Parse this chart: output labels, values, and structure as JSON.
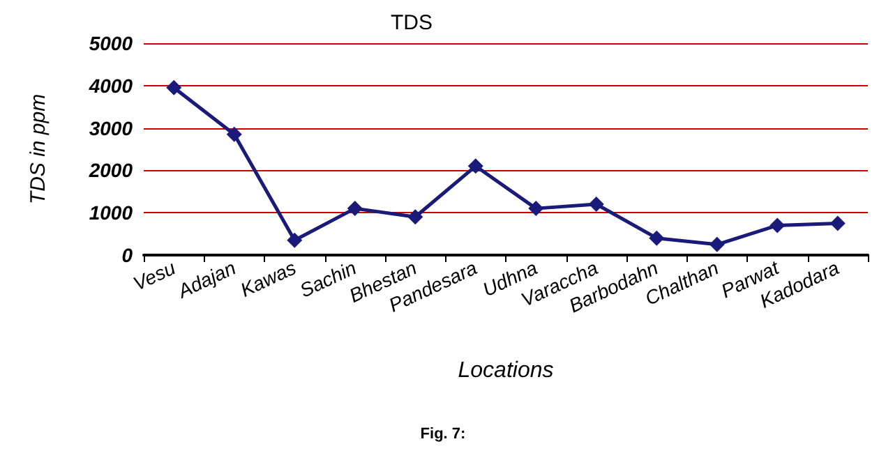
{
  "chart_data": {
    "type": "line",
    "title": "TDS",
    "xlabel": "Locations",
    "ylabel": "TDS in ppm",
    "categories": [
      "Vesu",
      "Adajan",
      "Kawas",
      "Sachin",
      "Bhestan",
      "Pandesara",
      "Udhna",
      "Varaccha",
      "Barbodahn",
      "Chalthan",
      "Parwat",
      "Kadodara"
    ],
    "series": [
      {
        "color": "#1a1a7a",
        "values": [
          3950,
          2850,
          350,
          1100,
          900,
          2100,
          1100,
          1200,
          400,
          250,
          700,
          750
        ]
      }
    ],
    "ylim": [
      0,
      5000
    ],
    "yticks": [
      0,
      1000,
      2000,
      3000,
      4000,
      5000
    ],
    "grid": "y",
    "marker": "diamond",
    "line_style": "solid",
    "annotations": [
      "Fig. 7:"
    ]
  }
}
